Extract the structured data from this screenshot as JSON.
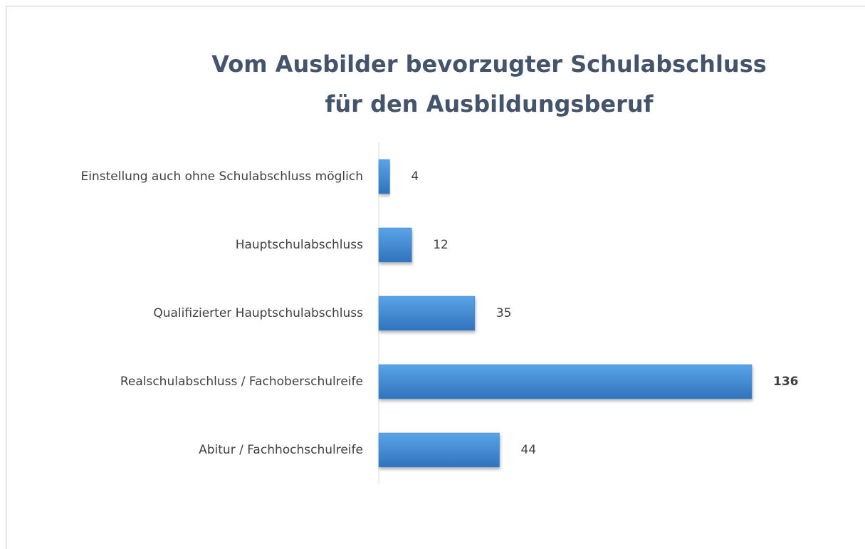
{
  "chart_data": {
    "type": "bar",
    "orientation": "horizontal",
    "title": "Vom Ausbilder bevorzugter Schulabschluss\nfür den Ausbildungsberuf",
    "categories": [
      "Einstellung auch ohne Schulabschluss möglich",
      "Hauptschulabschluss",
      "Qualifizierter Hauptschulabschluss",
      "Realschulabschluss / Fachoberschulreife",
      "Abitur / Fachhochschulreife"
    ],
    "values": [
      4,
      12,
      35,
      136,
      44
    ],
    "color": "#3b86d4"
  }
}
